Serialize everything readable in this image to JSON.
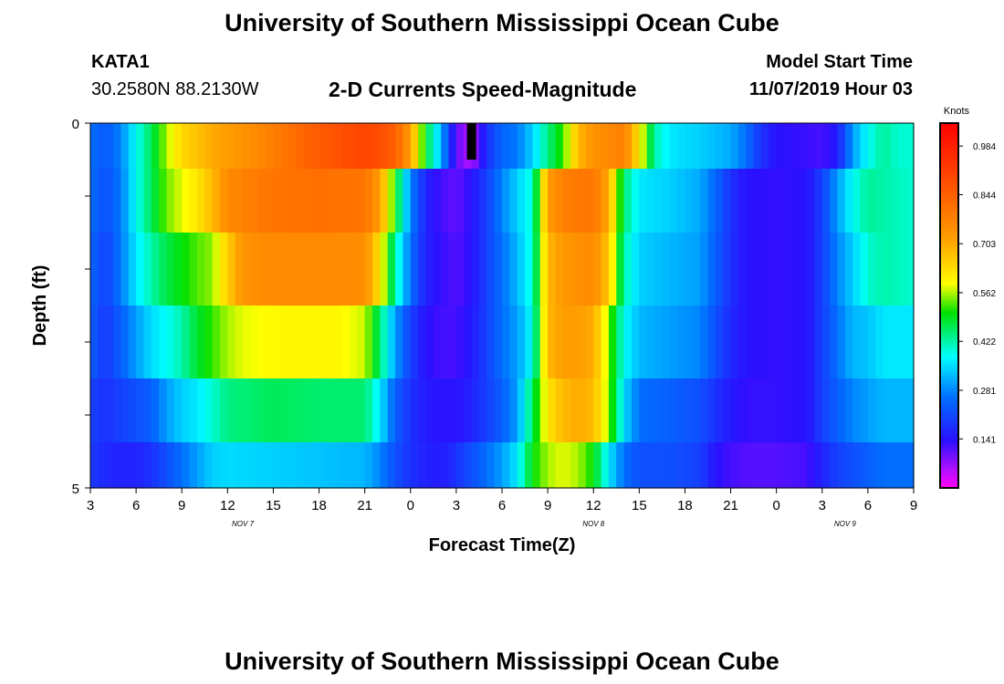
{
  "title": "University of Southern Mississippi Ocean Cube",
  "footer_title": "University of Southern Mississippi Ocean Cube",
  "station": {
    "id": "KATA1",
    "coords": "30.2580N 88.2130W"
  },
  "model": {
    "label": "Model Start Time",
    "start": "11/07/2019 Hour 03"
  },
  "chart_data": {
    "type": "heatmap",
    "title": "2-D Currents Speed-Magnitude",
    "xlabel": "Forecast Time(Z)",
    "ylabel": "Depth (ft)",
    "y_range": [
      0,
      5
    ],
    "y_tick_labels": [
      "0",
      "5"
    ],
    "y_ticks": [
      0,
      1,
      2,
      3,
      4,
      5
    ],
    "x_range_hours": [
      0,
      54
    ],
    "x_tick_hours": [
      0,
      3,
      6,
      9,
      12,
      15,
      18,
      21,
      24,
      27,
      30,
      33,
      36,
      39,
      42,
      45,
      48,
      51,
      54
    ],
    "x_tick_labels": [
      "3",
      "6",
      "9",
      "12",
      "15",
      "18",
      "21",
      "0",
      "3",
      "6",
      "9",
      "12",
      "15",
      "18",
      "21",
      "0",
      "3",
      "6",
      "9"
    ],
    "day_labels": [
      {
        "text": "NOV 7",
        "hour": 10
      },
      {
        "text": "NOV 8",
        "hour": 33
      },
      {
        "text": "NOV 9",
        "hour": 49.5
      }
    ],
    "colorbar": {
      "unit": "Knots",
      "min": 0.0,
      "max": 1.05,
      "tick_labels": [
        "0.984",
        "0.844",
        "0.703",
        "0.562",
        "0.422",
        "0.281",
        "0.141"
      ],
      "tick_values": [
        0.984,
        0.844,
        0.703,
        0.562,
        0.422,
        0.281,
        0.141
      ]
    },
    "depth_layers": [
      0.25,
      1.0,
      2.0,
      3.0,
      4.0,
      4.75
    ],
    "series": [
      {
        "name": "depth 0.25 ft",
        "points": [
          [
            0,
            0.26
          ],
          [
            1,
            0.23
          ],
          [
            2,
            0.28
          ],
          [
            3,
            0.38
          ],
          [
            4,
            0.46
          ],
          [
            5,
            0.56
          ],
          [
            6,
            0.64
          ],
          [
            8,
            0.7
          ],
          [
            10,
            0.74
          ],
          [
            12,
            0.78
          ],
          [
            14,
            0.83
          ],
          [
            16,
            0.87
          ],
          [
            18,
            0.9
          ],
          [
            19,
            0.88
          ],
          [
            20,
            0.84
          ],
          [
            21,
            0.72
          ],
          [
            22,
            0.48
          ],
          [
            23,
            0.32
          ],
          [
            24,
            0.1
          ],
          [
            25,
            0.05
          ],
          [
            26,
            0.18
          ],
          [
            27,
            0.25
          ],
          [
            28,
            0.27
          ],
          [
            29,
            0.34
          ],
          [
            30,
            0.44
          ],
          [
            31,
            0.52
          ],
          [
            32,
            0.68
          ],
          [
            33,
            0.74
          ],
          [
            35,
            0.78
          ],
          [
            36,
            0.62
          ],
          [
            37,
            0.42
          ],
          [
            38,
            0.36
          ],
          [
            40,
            0.34
          ],
          [
            42,
            0.31
          ],
          [
            43,
            0.26
          ],
          [
            44,
            0.18
          ],
          [
            45,
            0.14
          ],
          [
            48,
            0.12
          ],
          [
            49,
            0.15
          ],
          [
            50,
            0.3
          ],
          [
            51,
            0.38
          ],
          [
            52,
            0.43
          ],
          [
            53,
            0.4
          ],
          [
            54,
            0.4
          ]
        ]
      },
      {
        "name": "depth 1 ft",
        "points": [
          [
            0,
            0.26
          ],
          [
            1,
            0.22
          ],
          [
            2,
            0.27
          ],
          [
            3,
            0.38
          ],
          [
            4,
            0.46
          ],
          [
            5,
            0.54
          ],
          [
            6,
            0.58
          ],
          [
            7,
            0.62
          ],
          [
            8,
            0.68
          ],
          [
            9,
            0.76
          ],
          [
            12,
            0.8
          ],
          [
            15,
            0.81
          ],
          [
            18,
            0.8
          ],
          [
            19,
            0.72
          ],
          [
            20,
            0.5
          ],
          [
            21,
            0.28
          ],
          [
            22,
            0.16
          ],
          [
            23,
            0.12
          ],
          [
            24,
            0.1
          ],
          [
            25,
            0.14
          ],
          [
            26,
            0.2
          ],
          [
            27,
            0.28
          ],
          [
            28,
            0.34
          ],
          [
            29,
            0.4
          ],
          [
            30,
            0.72
          ],
          [
            31,
            0.78
          ],
          [
            33,
            0.8
          ],
          [
            34,
            0.7
          ],
          [
            35,
            0.45
          ],
          [
            36,
            0.36
          ],
          [
            38,
            0.34
          ],
          [
            40,
            0.31
          ],
          [
            41,
            0.25
          ],
          [
            42,
            0.18
          ],
          [
            43,
            0.14
          ],
          [
            45,
            0.13
          ],
          [
            47,
            0.14
          ],
          [
            48,
            0.2
          ],
          [
            49,
            0.3
          ],
          [
            50,
            0.38
          ],
          [
            51,
            0.43
          ],
          [
            52,
            0.42
          ],
          [
            54,
            0.4
          ]
        ]
      },
      {
        "name": "depth 2 ft",
        "points": [
          [
            0,
            0.25
          ],
          [
            1,
            0.2
          ],
          [
            2,
            0.27
          ],
          [
            3,
            0.36
          ],
          [
            4,
            0.42
          ],
          [
            5,
            0.47
          ],
          [
            6,
            0.5
          ],
          [
            7,
            0.53
          ],
          [
            8,
            0.55
          ],
          [
            9,
            0.65
          ],
          [
            10,
            0.74
          ],
          [
            12,
            0.76
          ],
          [
            15,
            0.76
          ],
          [
            18,
            0.75
          ],
          [
            19,
            0.62
          ],
          [
            20,
            0.42
          ],
          [
            21,
            0.26
          ],
          [
            22,
            0.16
          ],
          [
            23,
            0.13
          ],
          [
            24,
            0.11
          ],
          [
            25,
            0.14
          ],
          [
            26,
            0.2
          ],
          [
            27,
            0.26
          ],
          [
            28,
            0.32
          ],
          [
            29,
            0.4
          ],
          [
            30,
            0.68
          ],
          [
            31,
            0.73
          ],
          [
            33,
            0.76
          ],
          [
            34,
            0.66
          ],
          [
            35,
            0.42
          ],
          [
            36,
            0.34
          ],
          [
            38,
            0.32
          ],
          [
            40,
            0.3
          ],
          [
            41,
            0.24
          ],
          [
            42,
            0.18
          ],
          [
            43,
            0.14
          ],
          [
            45,
            0.13
          ],
          [
            47,
            0.14
          ],
          [
            48,
            0.2
          ],
          [
            49,
            0.28
          ],
          [
            50,
            0.34
          ],
          [
            51,
            0.4
          ],
          [
            52,
            0.42
          ],
          [
            54,
            0.4
          ]
        ]
      },
      {
        "name": "depth 3 ft",
        "points": [
          [
            0,
            0.24
          ],
          [
            1,
            0.19
          ],
          [
            2,
            0.24
          ],
          [
            3,
            0.3
          ],
          [
            4,
            0.35
          ],
          [
            5,
            0.38
          ],
          [
            6,
            0.42
          ],
          [
            7,
            0.48
          ],
          [
            8,
            0.52
          ],
          [
            9,
            0.56
          ],
          [
            10,
            0.58
          ],
          [
            13,
            0.6
          ],
          [
            16,
            0.6
          ],
          [
            18,
            0.57
          ],
          [
            19,
            0.45
          ],
          [
            20,
            0.3
          ],
          [
            21,
            0.2
          ],
          [
            22,
            0.14
          ],
          [
            23,
            0.12
          ],
          [
            24,
            0.12
          ],
          [
            25,
            0.15
          ],
          [
            26,
            0.2
          ],
          [
            27,
            0.26
          ],
          [
            28,
            0.3
          ],
          [
            29,
            0.38
          ],
          [
            30,
            0.68
          ],
          [
            31,
            0.72
          ],
          [
            32,
            0.72
          ],
          [
            33,
            0.7
          ],
          [
            34,
            0.55
          ],
          [
            35,
            0.38
          ],
          [
            36,
            0.32
          ],
          [
            38,
            0.3
          ],
          [
            40,
            0.28
          ],
          [
            41,
            0.22
          ],
          [
            42,
            0.17
          ],
          [
            43,
            0.14
          ],
          [
            45,
            0.13
          ],
          [
            47,
            0.14
          ],
          [
            48,
            0.2
          ],
          [
            49,
            0.26
          ],
          [
            50,
            0.32
          ],
          [
            51,
            0.33
          ],
          [
            52,
            0.36
          ],
          [
            54,
            0.36
          ]
        ]
      },
      {
        "name": "depth 4 ft",
        "points": [
          [
            0,
            0.2
          ],
          [
            1,
            0.18
          ],
          [
            2,
            0.2
          ],
          [
            3,
            0.22
          ],
          [
            4,
            0.24
          ],
          [
            5,
            0.3
          ],
          [
            6,
            0.34
          ],
          [
            7,
            0.36
          ],
          [
            8,
            0.4
          ],
          [
            9,
            0.44
          ],
          [
            12,
            0.46
          ],
          [
            15,
            0.45
          ],
          [
            18,
            0.45
          ],
          [
            19,
            0.36
          ],
          [
            20,
            0.24
          ],
          [
            21,
            0.18
          ],
          [
            22,
            0.15
          ],
          [
            23,
            0.14
          ],
          [
            24,
            0.14
          ],
          [
            25,
            0.16
          ],
          [
            26,
            0.2
          ],
          [
            27,
            0.24
          ],
          [
            28,
            0.3
          ],
          [
            29,
            0.46
          ],
          [
            30,
            0.62
          ],
          [
            31,
            0.68
          ],
          [
            32,
            0.7
          ],
          [
            33,
            0.68
          ],
          [
            34,
            0.55
          ],
          [
            35,
            0.35
          ],
          [
            36,
            0.26
          ],
          [
            38,
            0.24
          ],
          [
            40,
            0.22
          ],
          [
            41,
            0.18
          ],
          [
            42,
            0.15
          ],
          [
            43,
            0.13
          ],
          [
            45,
            0.13
          ],
          [
            47,
            0.14
          ],
          [
            48,
            0.2
          ],
          [
            49,
            0.24
          ],
          [
            50,
            0.28
          ],
          [
            51,
            0.3
          ],
          [
            52,
            0.32
          ],
          [
            54,
            0.32
          ]
        ]
      },
      {
        "name": "depth 4.75 ft",
        "points": [
          [
            0,
            0.19
          ],
          [
            1,
            0.17
          ],
          [
            2,
            0.16
          ],
          [
            3,
            0.16
          ],
          [
            4,
            0.18
          ],
          [
            5,
            0.22
          ],
          [
            6,
            0.26
          ],
          [
            7,
            0.3
          ],
          [
            8,
            0.34
          ],
          [
            9,
            0.35
          ],
          [
            12,
            0.34
          ],
          [
            15,
            0.33
          ],
          [
            18,
            0.32
          ],
          [
            19,
            0.28
          ],
          [
            20,
            0.22
          ],
          [
            21,
            0.18
          ],
          [
            22,
            0.16
          ],
          [
            23,
            0.15
          ],
          [
            24,
            0.18
          ],
          [
            25,
            0.22
          ],
          [
            26,
            0.26
          ],
          [
            27,
            0.3
          ],
          [
            28,
            0.36
          ],
          [
            29,
            0.5
          ],
          [
            30,
            0.56
          ],
          [
            31,
            0.58
          ],
          [
            32,
            0.56
          ],
          [
            33,
            0.5
          ],
          [
            34,
            0.36
          ],
          [
            35,
            0.26
          ],
          [
            36,
            0.22
          ],
          [
            38,
            0.22
          ],
          [
            40,
            0.2
          ],
          [
            41,
            0.14
          ],
          [
            42,
            0.12
          ],
          [
            43,
            0.11
          ],
          [
            45,
            0.11
          ],
          [
            47,
            0.12
          ],
          [
            48,
            0.16
          ],
          [
            49,
            0.2
          ],
          [
            50,
            0.22
          ],
          [
            51,
            0.24
          ],
          [
            52,
            0.26
          ],
          [
            54,
            0.26
          ]
        ]
      }
    ],
    "missing_cell": {
      "hour_start": 24.7,
      "hour_end": 25.3,
      "depth_start": 0,
      "depth_end": 0.5,
      "color": "#000000"
    }
  }
}
